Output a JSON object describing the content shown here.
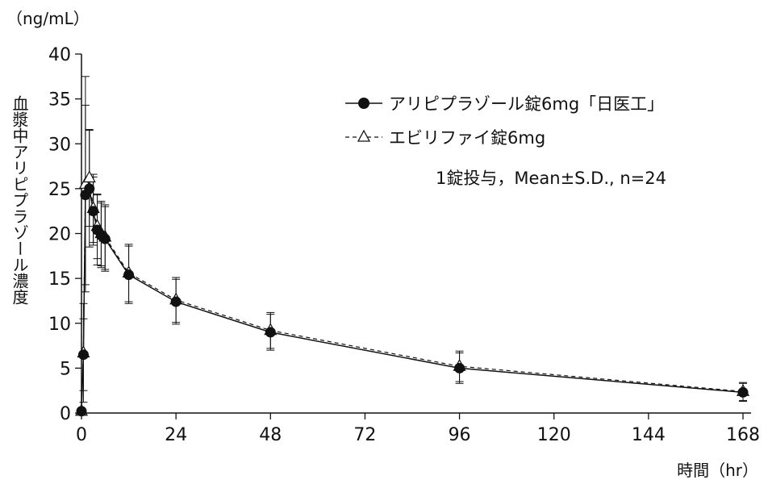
{
  "chart_data": {
    "type": "line",
    "y_unit": "（ng/mL）",
    "ylabel": "血漿中アリピプラゾール濃度",
    "xlabel": "時間（hr）",
    "xlim": [
      0,
      168
    ],
    "ylim": [
      0,
      40
    ],
    "x_ticks": [
      0,
      24,
      48,
      72,
      96,
      120,
      144,
      168
    ],
    "y_ticks": [
      0,
      5,
      10,
      15,
      20,
      25,
      30,
      35,
      40
    ],
    "grid": false,
    "legend_position": "top-right",
    "annotation": "1錠投与，Mean±S.D., n=24",
    "series": [
      {
        "name": "アリピプラゾール錠6mg「日医工」",
        "marker": "filled-circle",
        "line": "solid",
        "x": [
          0,
          0.5,
          1,
          2,
          3,
          4,
          5,
          6,
          12,
          24,
          48,
          96,
          168
        ],
        "y": [
          0.2,
          6.5,
          24.3,
          25.0,
          22.5,
          20.4,
          19.8,
          19.4,
          15.4,
          12.4,
          9.0,
          5.0,
          2.3
        ],
        "sd": [
          0.1,
          4.0,
          10.0,
          6.5,
          3.8,
          3.9,
          3.6,
          3.6,
          3.2,
          2.5,
          2.0,
          1.7,
          1.0
        ]
      },
      {
        "name": "エビリファイ錠6mg",
        "marker": "open-triangle",
        "line": "dashed",
        "x": [
          0,
          0.5,
          1,
          2,
          3,
          4,
          5,
          6,
          12,
          24,
          48,
          96,
          168
        ],
        "y": [
          0.2,
          6.7,
          25.5,
          26.2,
          22.8,
          20.8,
          20.0,
          19.6,
          15.6,
          12.6,
          9.2,
          5.2,
          2.4
        ],
        "sd": [
          0.1,
          5.5,
          12.0,
          5.4,
          3.8,
          3.6,
          3.6,
          3.6,
          3.2,
          2.5,
          2.0,
          1.7,
          1.0
        ]
      }
    ]
  }
}
